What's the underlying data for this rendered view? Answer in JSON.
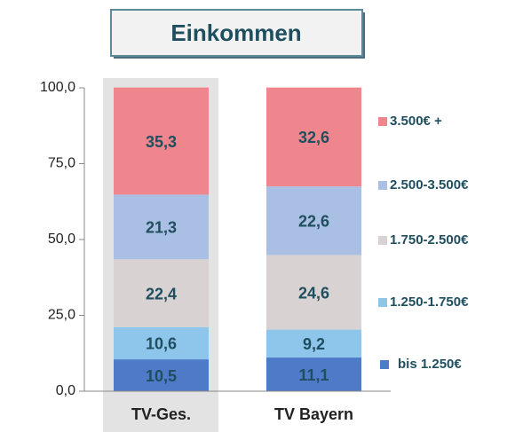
{
  "chart_data": {
    "type": "stacked_bar",
    "title": "Einkommen",
    "categories": [
      "TV-Ges.",
      "TV Bayern"
    ],
    "series": [
      {
        "name": "bis 1.250€",
        "color": "#4f7ac7",
        "values": [
          10.5,
          11.1
        ],
        "value_labels": [
          "10,5",
          "11,1"
        ]
      },
      {
        "name": "1.250-1.750€",
        "color": "#8ec5ea",
        "values": [
          10.6,
          9.2
        ],
        "value_labels": [
          "10,6",
          "9,2"
        ]
      },
      {
        "name": "1.750-2.500€",
        "color": "#d9d2d2",
        "values": [
          22.4,
          24.6
        ],
        "value_labels": [
          "22,4",
          "24,6"
        ]
      },
      {
        "name": "2.500-3.500€",
        "color": "#a9bfe3",
        "values": [
          21.3,
          22.6
        ],
        "value_labels": [
          "21,3",
          "22,6"
        ]
      },
      {
        "name": "3.500€ +",
        "color": "#f0868d",
        "values": [
          35.3,
          32.6
        ],
        "value_labels": [
          "35,3",
          "32,6"
        ]
      }
    ],
    "ylim": [
      0,
      100
    ],
    "yticks": [
      {
        "value": 0,
        "label": "0,0"
      },
      {
        "value": 25,
        "label": "25,0"
      },
      {
        "value": 50,
        "label": "50,0"
      },
      {
        "value": 75,
        "label": "75,0"
      },
      {
        "value": 100,
        "label": "100,0"
      }
    ],
    "legend": "right"
  }
}
